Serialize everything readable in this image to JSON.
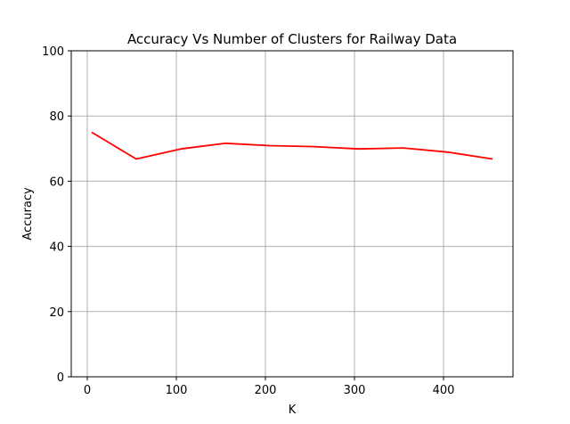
{
  "chart_data": {
    "type": "line",
    "title": "Accuracy Vs Number of Clusters for Railway Data",
    "xlabel": "K",
    "ylabel": "Accuracy",
    "xlim": [
      -18,
      478
    ],
    "ylim": [
      0,
      100
    ],
    "xticks": [
      0,
      100,
      200,
      300,
      400
    ],
    "yticks": [
      0,
      20,
      40,
      60,
      80,
      100
    ],
    "grid": true,
    "series": [
      {
        "color": "#ff0000",
        "x": [
          5,
          55,
          105,
          155,
          205,
          255,
          305,
          355,
          405,
          455
        ],
        "y": [
          75.0,
          66.8,
          69.9,
          71.6,
          70.9,
          70.6,
          69.9,
          70.2,
          68.9,
          66.8
        ]
      }
    ]
  }
}
